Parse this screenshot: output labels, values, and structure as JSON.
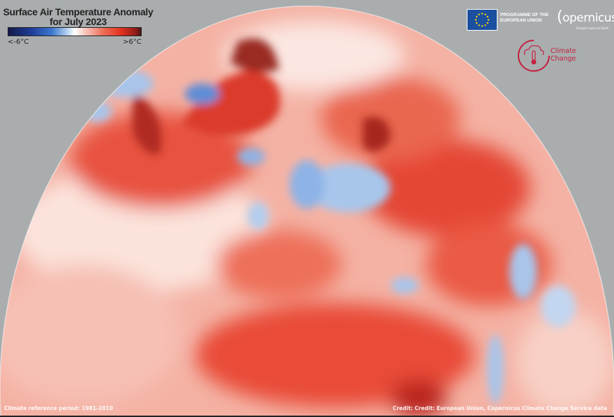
{
  "title": {
    "line1": "Surface Air Temperature Anomaly",
    "line2": "for July 2023"
  },
  "colorbar": {
    "min_label": "<-6°C",
    "max_label": ">6°C",
    "min_value": -6,
    "max_value": 6,
    "unit": "°C",
    "colors": [
      "#131a4d",
      "#3c78d0",
      "#ffffff",
      "#e2321f",
      "#4a1512"
    ]
  },
  "logos": {
    "eu": "PROGRAMME OF THE EUROPEAN UNION",
    "eu_line1": "PROGRAMME OF THE",
    "eu_line2": "EUROPEAN UNION",
    "copernicus": "opernicus",
    "copernicus_tagline": "Europe's eyes on Earth",
    "climate_line1": "Climate",
    "climate_line2": "Change"
  },
  "footer": {
    "reference": "Climate reference period: 1981-2010",
    "credit": "Credit: Credit: European Union, Copernicus Climate Change Service data"
  },
  "map": {
    "ocean_warm": "#f6b3a6",
    "land_hot": "#e2392a",
    "cold": "#9fc0ea",
    "background": "#a9adae"
  }
}
